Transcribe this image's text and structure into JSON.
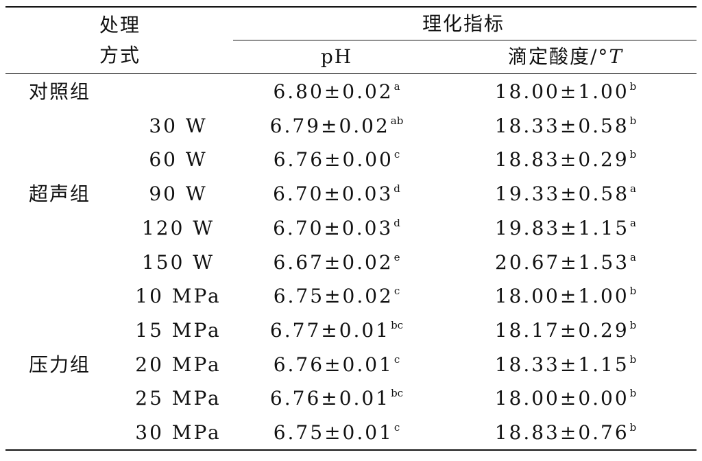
{
  "header": {
    "treatment_line1": "处理",
    "treatment_line2": "方式",
    "indicators": "理化指标",
    "ph": "pH",
    "acidity_prefix": "滴定酸度/°",
    "acidity_unit": "T"
  },
  "groups": {
    "control": "对照组",
    "ultrasound": "超声组",
    "pressure": "压力组"
  },
  "rows": [
    {
      "level": "",
      "ph": "6.80±0.02",
      "ph_sig": "a",
      "acid": "18.00±1.00",
      "acid_sig": "b"
    },
    {
      "level": "30 W",
      "ph": "6.79±0.02",
      "ph_sig": "ab",
      "acid": "18.33±0.58",
      "acid_sig": "b"
    },
    {
      "level": "60 W",
      "ph": "6.76±0.00",
      "ph_sig": "c",
      "acid": "18.83±0.29",
      "acid_sig": "b"
    },
    {
      "level": "90 W",
      "ph": "6.70±0.03",
      "ph_sig": "d",
      "acid": "19.33±0.58",
      "acid_sig": "a"
    },
    {
      "level": "120 W",
      "ph": "6.70±0.03",
      "ph_sig": "d",
      "acid": "19.83±1.15",
      "acid_sig": "a"
    },
    {
      "level": "150 W",
      "ph": "6.67±0.02",
      "ph_sig": "e",
      "acid": "20.67±1.53",
      "acid_sig": "a"
    },
    {
      "level": "10 MPa",
      "ph": "6.75±0.02",
      "ph_sig": "c",
      "acid": "18.00±1.00",
      "acid_sig": "b"
    },
    {
      "level": "15 MPa",
      "ph": "6.77±0.01",
      "ph_sig": "bc",
      "acid": "18.17±0.29",
      "acid_sig": "b"
    },
    {
      "level": "20 MPa",
      "ph": "6.76±0.01",
      "ph_sig": "c",
      "acid": "18.33±1.15",
      "acid_sig": "b"
    },
    {
      "level": "25 MPa",
      "ph": "6.76±0.01",
      "ph_sig": "bc",
      "acid": "18.00±0.00",
      "acid_sig": "b"
    },
    {
      "level": "30 MPa",
      "ph": "6.75±0.01",
      "ph_sig": "c",
      "acid": "18.83±0.76",
      "acid_sig": "b"
    }
  ]
}
